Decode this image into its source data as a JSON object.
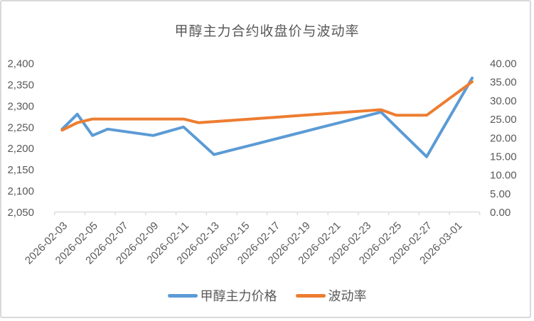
{
  "chart_data": {
    "type": "line",
    "title": "甲醇主力合约收盘价与波动率",
    "x": [
      "2026-02-03",
      "2026-02-04",
      "2026-02-05",
      "2026-02-06",
      "2026-02-07",
      "2026-02-08",
      "2026-02-09",
      "2026-02-10",
      "2026-02-11",
      "2026-02-12",
      "2026-02-13",
      "2026-02-14",
      "2026-02-15",
      "2026-02-16",
      "2026-02-17",
      "2026-02-18",
      "2026-02-19",
      "2026-02-20",
      "2026-02-21",
      "2026-02-22",
      "2026-02-23",
      "2026-02-24",
      "2026-02-25",
      "2026-02-26",
      "2026-02-27",
      "2026-02-28",
      "2026-03-01",
      "2026-03-02"
    ],
    "x_tick_labels": [
      "2026-02-03",
      "2026-02-05",
      "2026-02-07",
      "2026-02-09",
      "2026-02-11",
      "2026-02-13",
      "2026-02-15",
      "2026-02-17",
      "2026-02-19",
      "2026-02-21",
      "2026-02-23",
      "2026-02-25",
      "2026-02-27",
      "2026-03-01"
    ],
    "series": [
      {
        "name": "甲醇主力价格",
        "axis": "left",
        "color": "#5B9BD5",
        "values": [
          2245,
          2280,
          2230,
          2245,
          2240,
          2235,
          2230,
          2240,
          2250,
          2217.5,
          2185,
          2194.1,
          2203.2,
          2212.3,
          2221.4,
          2230.5,
          2239.5,
          2248.6,
          2257.7,
          2266.8,
          2275.9,
          2285,
          2250,
          2215,
          2180,
          2241.7,
          2303.3,
          2365
        ]
      },
      {
        "name": "波动率",
        "axis": "right",
        "color": "#ED7D31",
        "values": [
          22,
          24,
          25,
          25,
          25,
          25,
          25,
          25,
          25,
          24,
          24.29,
          24.58,
          24.88,
          25.17,
          25.46,
          25.75,
          26.04,
          26.33,
          26.63,
          26.92,
          27.21,
          27.5,
          26,
          26,
          26,
          29,
          32,
          35
        ]
      }
    ],
    "left_axis": {
      "min": 2050,
      "max": 2400,
      "step": 50,
      "tick_labels": [
        "2,400",
        "2,350",
        "2,300",
        "2,250",
        "2,200",
        "2,150",
        "2,100",
        "2,050"
      ]
    },
    "right_axis": {
      "min": 0,
      "max": 40,
      "step": 5,
      "tick_labels": [
        "40.00",
        "35.00",
        "30.00",
        "25.00",
        "20.00",
        "15.00",
        "10.00",
        "5.00",
        "0.00"
      ]
    },
    "legend_position": "bottom",
    "grid": "off"
  },
  "colors": {
    "axis_line": "#d9d9d9",
    "label_text": "#595959",
    "title_text": "#595959",
    "frame_border": "#d9d9d9"
  }
}
